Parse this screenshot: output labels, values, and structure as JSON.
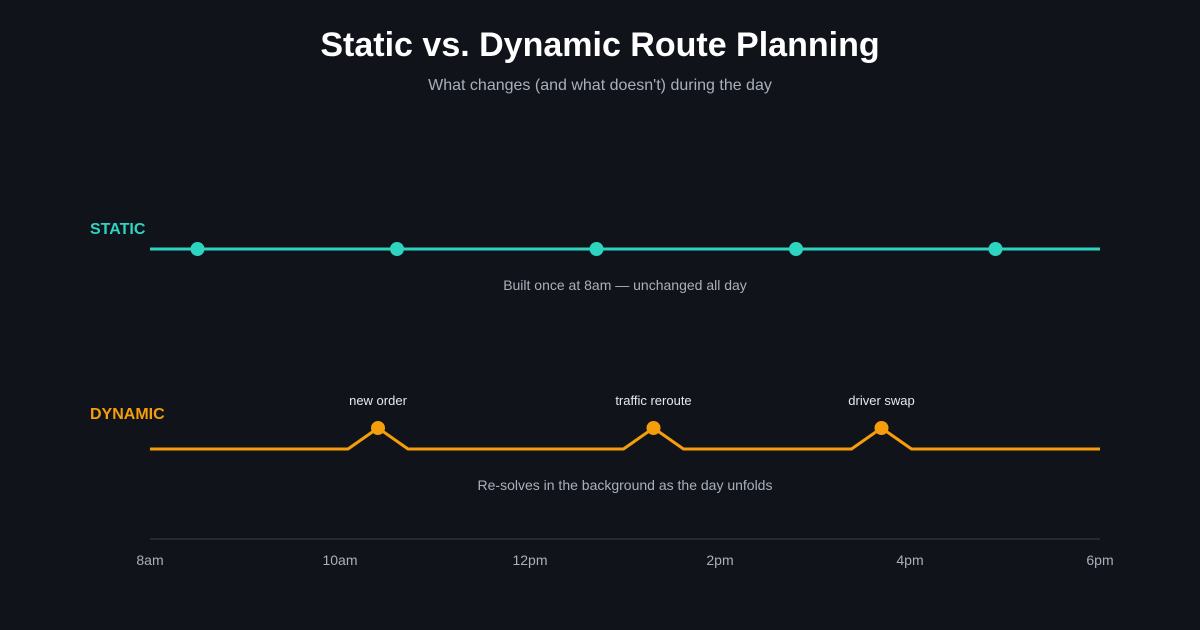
{
  "title": "Static vs. Dynamic Route Planning",
  "subtitle": "What changes (and what doesn't) during the day",
  "colors": {
    "background": "#10131a",
    "static": "#2dd4bf",
    "dynamic": "#f59e0b",
    "axis": "#3a3f4b",
    "muted_text": "#a9b0bc",
    "event_text": "#e6e8ec"
  },
  "static_track": {
    "label": "STATIC",
    "caption": "Built once at 8am — unchanged all day",
    "stop_times": [
      8.5,
      10.6,
      12.7,
      14.8,
      16.9
    ]
  },
  "dynamic_track": {
    "label": "DYNAMIC",
    "caption": "Re-solves in the background as the day unfolds",
    "events": [
      {
        "time": 10.4,
        "label": "new order"
      },
      {
        "time": 13.3,
        "label": "traffic reroute"
      },
      {
        "time": 15.7,
        "label": "driver swap"
      }
    ]
  },
  "axis": {
    "start": 8,
    "end": 18,
    "ticks": [
      {
        "value": 8,
        "label": "8am"
      },
      {
        "value": 10,
        "label": "10am"
      },
      {
        "value": 12,
        "label": "12pm"
      },
      {
        "value": 14,
        "label": "2pm"
      },
      {
        "value": 16,
        "label": "4pm"
      },
      {
        "value": 18,
        "label": "6pm"
      }
    ]
  }
}
